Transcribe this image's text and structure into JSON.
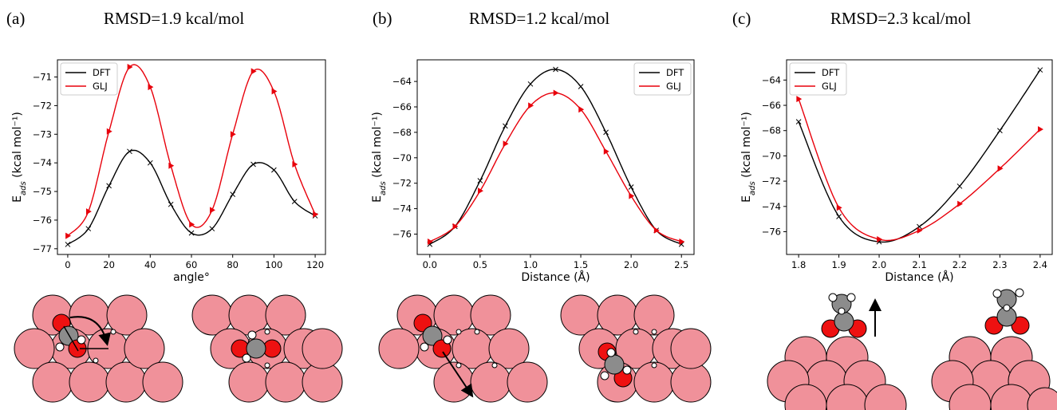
{
  "colors": {
    "dft": "#000000",
    "glj": "#e8000b",
    "metal": "#f0919a",
    "carbon": "#8c8c8c",
    "oxygen": "#ee1111",
    "hydrogen": "#ffffff"
  },
  "chart_data": [
    {
      "type": "line",
      "panel_label": "(a)",
      "title": "RMSD=1.9 kcal/mol",
      "xlabel": "angle°",
      "ylabel": "E_ads (kcal mol⁻¹)",
      "xlim": [
        -5,
        125
      ],
      "ylim": [
        -77.2,
        -70.4
      ],
      "xticks": [
        0,
        20,
        40,
        60,
        80,
        100,
        120
      ],
      "yticks": [
        -77,
        -76,
        -75,
        -74,
        -73,
        -72,
        -71
      ],
      "legend": "top-left",
      "series": [
        {
          "name": "DFT",
          "key": "dft",
          "marker": "x",
          "x": [
            0,
            10,
            20,
            30,
            40,
            50,
            60,
            70,
            80,
            90,
            100,
            110,
            120
          ],
          "y": [
            -76.85,
            -76.3,
            -74.8,
            -73.6,
            -74.0,
            -75.45,
            -76.45,
            -76.3,
            -75.1,
            -74.05,
            -74.25,
            -75.35,
            -75.85
          ]
        },
        {
          "name": "GLJ",
          "key": "glj",
          "marker": "tri",
          "x": [
            0,
            10,
            20,
            30,
            40,
            50,
            60,
            70,
            80,
            90,
            100,
            110,
            120
          ],
          "y": [
            -76.55,
            -75.7,
            -72.9,
            -70.65,
            -71.35,
            -74.1,
            -76.15,
            -75.65,
            -73.0,
            -70.8,
            -71.5,
            -74.05,
            -75.8
          ]
        }
      ]
    },
    {
      "type": "line",
      "panel_label": "(b)",
      "title": "RMSD=1.2 kcal/mol",
      "xlabel": "Distance (Å)",
      "ylabel": "E_ads (kcal mol⁻¹)",
      "xlim": [
        -0.125,
        2.625
      ],
      "ylim": [
        -77.6,
        -62.3
      ],
      "xticks": [
        0.0,
        0.5,
        1.0,
        1.5,
        2.0,
        2.5
      ],
      "xtick_labels": [
        "0.0",
        "0.5",
        "1.0",
        "1.5",
        "2.0",
        "2.5"
      ],
      "yticks": [
        -76,
        -74,
        -72,
        -70,
        -68,
        -66,
        -64
      ],
      "legend": "top-right",
      "series": [
        {
          "name": "DFT",
          "key": "dft",
          "marker": "x",
          "x": [
            0,
            0.25,
            0.5,
            0.75,
            1.0,
            1.25,
            1.5,
            1.75,
            2.0,
            2.25,
            2.5
          ],
          "y": [
            -76.8,
            -75.4,
            -71.8,
            -67.5,
            -64.2,
            -63.05,
            -64.4,
            -68.0,
            -72.3,
            -75.7,
            -76.8
          ]
        },
        {
          "name": "GLJ",
          "key": "glj",
          "marker": "tri",
          "x": [
            0,
            0.25,
            0.5,
            0.75,
            1.0,
            1.25,
            1.5,
            1.75,
            2.0,
            2.25,
            2.5
          ],
          "y": [
            -76.6,
            -75.4,
            -72.6,
            -68.9,
            -65.9,
            -64.9,
            -66.2,
            -69.5,
            -73.0,
            -75.7,
            -76.6
          ]
        }
      ]
    },
    {
      "type": "line",
      "panel_label": "(c)",
      "title": "RMSD=2.3 kcal/mol",
      "xlabel": "Distance (Å)",
      "ylabel": "E_ads (kcal mol⁻¹)",
      "xlim": [
        1.77,
        2.43
      ],
      "ylim": [
        -77.8,
        -62.4
      ],
      "xticks": [
        1.8,
        1.9,
        2.0,
        2.1,
        2.2,
        2.3,
        2.4
      ],
      "xtick_labels": [
        "1.8",
        "1.9",
        "2.0",
        "2.1",
        "2.2",
        "2.3",
        "2.4"
      ],
      "yticks": [
        -76,
        -74,
        -72,
        -70,
        -68,
        -66,
        -64
      ],
      "legend": "top-left",
      "series": [
        {
          "name": "DFT",
          "key": "dft",
          "marker": "x",
          "x": [
            1.8,
            1.9,
            2.0,
            2.1,
            2.2,
            2.3,
            2.4
          ],
          "y": [
            -67.3,
            -74.8,
            -76.8,
            -75.6,
            -72.4,
            -68.0,
            -63.2
          ]
        },
        {
          "name": "GLJ",
          "key": "glj",
          "marker": "tri",
          "x": [
            1.8,
            1.9,
            2.0,
            2.1,
            2.2,
            2.3,
            2.4
          ],
          "y": [
            -65.5,
            -74.1,
            -76.6,
            -75.9,
            -73.8,
            -71.0,
            -67.9
          ]
        }
      ]
    }
  ],
  "illustrations": [
    {
      "panel": "a",
      "description": "CO2 on metal surface with rotation arrow"
    },
    {
      "panel": "b",
      "description": "molecule on surface with translation arrow"
    },
    {
      "panel": "c",
      "description": "side view of molecule above metal slab with vertical arrow"
    }
  ]
}
